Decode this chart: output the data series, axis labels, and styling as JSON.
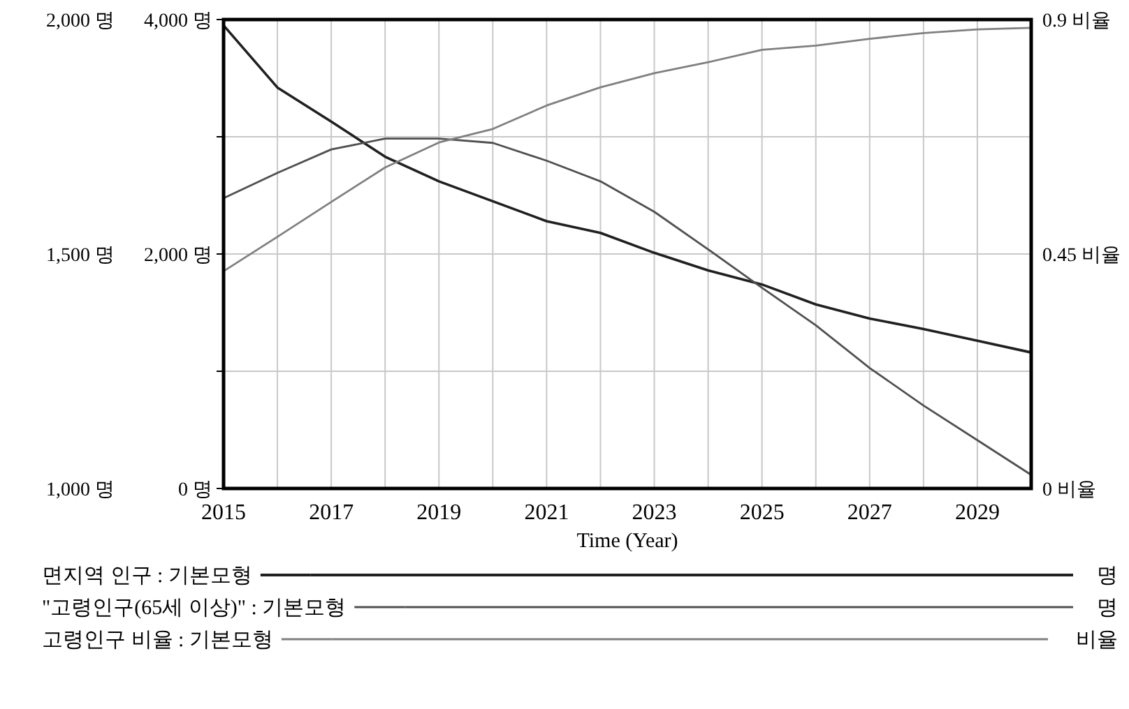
{
  "chart_data": {
    "type": "line",
    "xlabel": "Time (Year)",
    "x": [
      2015,
      2016,
      2017,
      2018,
      2019,
      2020,
      2021,
      2022,
      2023,
      2024,
      2025,
      2026,
      2027,
      2028,
      2029,
      2030
    ],
    "xlim": [
      2015,
      2030
    ],
    "xticks": [
      2015,
      {
        "value": 2016,
        "label": null
      },
      2017,
      {
        "value": 2018,
        "label": null
      },
      2019,
      {
        "value": 2020,
        "label": null
      },
      2021,
      {
        "value": 2022,
        "label": null
      },
      2023,
      {
        "value": 2024,
        "label": null
      },
      2025,
      {
        "value": 2026,
        "label": null
      },
      2027,
      {
        "value": 2028,
        "label": null
      },
      2029
    ],
    "ylim": [
      0,
      4000
    ],
    "yticks": [
      {
        "value": 0,
        "label": "0 명"
      },
      {
        "value": 1000,
        "label": null
      },
      {
        "value": 2000,
        "label": "2,000 명"
      },
      {
        "value": 3000,
        "label": null
      },
      {
        "value": 4000,
        "label": "4,000 명"
      }
    ],
    "y2lim": [
      1000,
      2000
    ],
    "y2ticks": [
      {
        "value": 1000,
        "label": "1,000 명"
      },
      {
        "value": 1500,
        "label": "1,500 명"
      },
      {
        "value": 2000,
        "label": "2,000 명"
      }
    ],
    "y3lim": [
      0,
      0.9
    ],
    "y3ticks": [
      {
        "value": 0,
        "label": "0 비율"
      },
      {
        "value": 0.45,
        "label": "0.45 비율"
      },
      {
        "value": 0.9,
        "label": "0.9 비율"
      }
    ],
    "grid": true,
    "legend": "bottom",
    "line_style": "solid",
    "series": [
      {
        "name": "면지역 인구 : 기본모형",
        "color": "#202020",
        "axis": "y",
        "values": [
          3950,
          3420,
          3130,
          2830,
          2620,
          2450,
          2280,
          2180,
          2010,
          1860,
          1740,
          1570,
          1450,
          1360,
          1260,
          1160
        ]
      },
      {
        "name": "\"고령인구(65세 이상)\" : 기본모형",
        "color": "#505050",
        "axis": "y2",
        "values": [
          1619,
          1673,
          1723,
          1746,
          1746,
          1737,
          1699,
          1655,
          1590,
          1510,
          1428,
          1348,
          1257,
          1177,
          1103,
          1029
        ]
      },
      {
        "name": "고령인구 비율 : 기본모형",
        "color": "#808080",
        "axis": "y3",
        "values": [
          0.417,
          0.483,
          0.55,
          0.616,
          0.664,
          0.69,
          0.735,
          0.77,
          0.797,
          0.818,
          0.842,
          0.85,
          0.863,
          0.874,
          0.881,
          0.884
        ]
      }
    ],
    "annotations": [
      "명",
      "명",
      "비율"
    ]
  }
}
